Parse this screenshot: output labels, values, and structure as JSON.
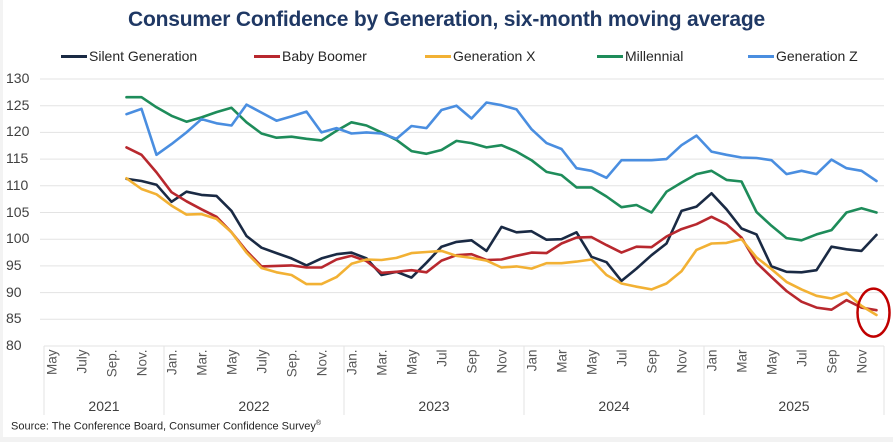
{
  "chart_data": {
    "type": "line",
    "title": "Consumer Confidence by Generation, six-month moving average",
    "xlabel": "",
    "ylabel": "",
    "ylim": [
      80,
      130
    ],
    "yticks": [
      80,
      85,
      90,
      95,
      100,
      105,
      110,
      115,
      120,
      125,
      130
    ],
    "grid": true,
    "legend_position": "top",
    "x_axis": {
      "start": "2021-05",
      "end": "2025-12",
      "years": [
        {
          "label": "2021",
          "months": [
            "May",
            "July",
            "Sep.",
            "Nov."
          ]
        },
        {
          "label": "2022",
          "months": [
            "Jan.",
            "Mar.",
            "May",
            "July",
            "Sep.",
            "Nov."
          ]
        },
        {
          "label": "2023",
          "months": [
            "Jan.",
            "Mar.",
            "May",
            "Jul",
            "Sep",
            "Nov"
          ]
        },
        {
          "label": "2024",
          "months": [
            "Jan",
            "Mar",
            "May",
            "Jul",
            "Sep",
            "Nov"
          ]
        },
        {
          "label": "2025",
          "months": [
            "Jan",
            "Mar",
            "May",
            "Jul",
            "Sep",
            "Nov"
          ]
        }
      ]
    },
    "x": [
      "2021-10",
      "2021-11",
      "2021-12",
      "2022-01",
      "2022-02",
      "2022-03",
      "2022-04",
      "2022-05",
      "2022-06",
      "2022-07",
      "2022-08",
      "2022-09",
      "2022-10",
      "2022-11",
      "2022-12",
      "2023-01",
      "2023-02",
      "2023-03",
      "2023-04",
      "2023-05",
      "2023-06",
      "2023-07",
      "2023-08",
      "2023-09",
      "2023-10",
      "2023-11",
      "2023-12",
      "2024-01",
      "2024-02",
      "2024-03",
      "2024-04",
      "2024-05",
      "2024-06",
      "2024-07",
      "2024-08",
      "2024-09",
      "2024-10",
      "2024-11",
      "2024-12",
      "2025-01",
      "2025-02",
      "2025-03",
      "2025-04",
      "2025-05",
      "2025-06",
      "2025-07",
      "2025-08",
      "2025-09",
      "2025-10",
      "2025-11",
      "2025-12"
    ],
    "series": [
      {
        "name": "Silent Generation",
        "color": "#1a2a44",
        "values": [
          111.3,
          110.9,
          110.2,
          107.0,
          108.9,
          108.3,
          108.1,
          105.3,
          100.6,
          98.4,
          97.4,
          96.4,
          95.1,
          96.4,
          97.2,
          97.5,
          96.4,
          93.3,
          93.9,
          92.8,
          95.6,
          98.6,
          99.5,
          99.8,
          97.8,
          102.3,
          101.3,
          101.5,
          99.9,
          100.0,
          101.3,
          96.7,
          95.7,
          92.2,
          94.5,
          97.0,
          99.2,
          105.3,
          106.1,
          108.6,
          105.6,
          102.0,
          100.9,
          94.9,
          93.9,
          93.8,
          94.2,
          98.6,
          98.1,
          97.8,
          100.8
        ]
      },
      {
        "name": "Baby Boomer",
        "color": "#b8282e",
        "values": [
          117.2,
          115.8,
          112.5,
          108.8,
          107.1,
          105.6,
          104.2,
          101.3,
          97.8,
          94.9,
          95.0,
          95.1,
          94.7,
          94.7,
          96.2,
          96.9,
          95.9,
          93.7,
          93.9,
          94.2,
          93.8,
          96.0,
          97.0,
          97.2,
          96.1,
          96.2,
          96.9,
          97.5,
          97.4,
          99.2,
          100.3,
          100.4,
          98.9,
          97.5,
          98.6,
          98.5,
          100.5,
          101.9,
          102.8,
          104.2,
          102.8,
          100.3,
          95.6,
          92.9,
          90.3,
          88.3,
          87.2,
          86.8,
          88.6,
          87.2,
          86.7
        ]
      },
      {
        "name": "Generation X",
        "color": "#f2b134",
        "values": [
          111.4,
          109.4,
          108.4,
          106.3,
          104.6,
          104.7,
          103.8,
          101.3,
          97.5,
          94.6,
          93.8,
          93.3,
          91.6,
          91.6,
          92.9,
          95.4,
          96.2,
          96.1,
          96.5,
          97.4,
          97.6,
          97.8,
          96.9,
          96.5,
          96.0,
          94.7,
          94.9,
          94.5,
          95.5,
          95.5,
          95.8,
          96.2,
          93.3,
          91.7,
          91.1,
          90.6,
          91.7,
          94.0,
          98.0,
          99.2,
          99.3,
          100.0,
          96.6,
          94.4,
          92.0,
          90.6,
          89.4,
          88.9,
          90.0,
          87.5,
          85.8
        ]
      },
      {
        "name": "Millennial",
        "color": "#1e8c5a",
        "values": [
          126.6,
          126.6,
          124.7,
          123.1,
          122.0,
          122.8,
          123.8,
          124.6,
          121.9,
          119.8,
          119.0,
          119.2,
          118.8,
          118.5,
          120.3,
          121.9,
          121.3,
          120.0,
          118.6,
          116.5,
          116.0,
          116.7,
          118.4,
          118.0,
          117.2,
          117.6,
          116.4,
          114.8,
          112.6,
          112.0,
          109.7,
          109.7,
          108.0,
          106.0,
          106.4,
          105.0,
          108.9,
          110.6,
          112.2,
          112.8,
          111.1,
          110.8,
          105.1,
          102.5,
          100.2,
          99.8,
          100.9,
          101.7,
          105.0,
          105.8,
          105.0
        ]
      },
      {
        "name": "Generation Z",
        "color": "#4a8ee0",
        "values": [
          123.4,
          124.4,
          115.8,
          117.8,
          120.0,
          122.5,
          121.7,
          121.3,
          125.2,
          123.7,
          122.2,
          123.0,
          123.9,
          120.0,
          120.8,
          119.8,
          120.0,
          119.8,
          118.8,
          121.2,
          120.8,
          124.2,
          125.0,
          122.6,
          125.6,
          125.1,
          124.3,
          120.6,
          118.0,
          116.9,
          113.3,
          112.8,
          111.5,
          114.8,
          114.8,
          114.8,
          115.0,
          117.6,
          119.4,
          116.4,
          115.8,
          115.3,
          115.2,
          114.8,
          112.2,
          112.8,
          112.2,
          114.9,
          113.3,
          112.8,
          110.9
        ]
      }
    ],
    "annotations": [
      {
        "type": "ellipse-highlight",
        "color": "#c00000",
        "target": "2025-12 values"
      }
    ]
  },
  "source": {
    "text": "Source: The Conference Board, Consumer Confidence Survey",
    "mark": "®"
  }
}
